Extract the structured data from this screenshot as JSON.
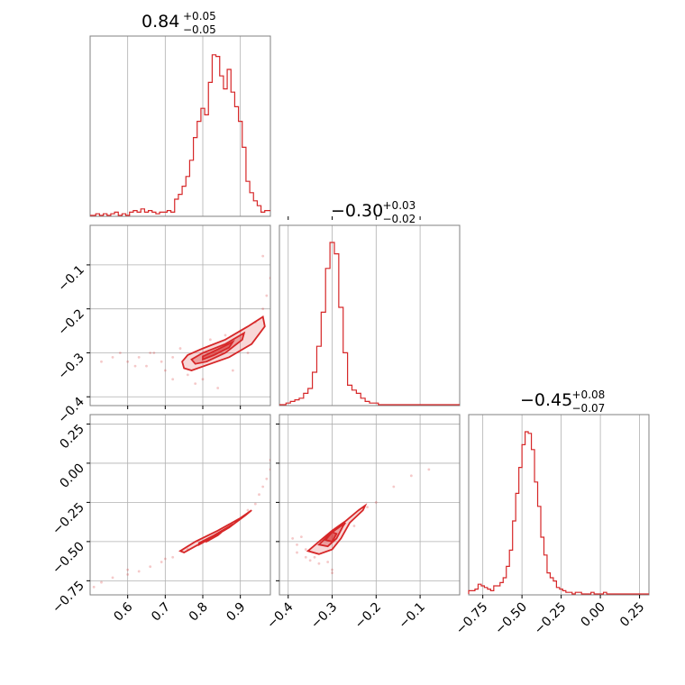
{
  "colors": {
    "series": "#d62728",
    "frame": "#808080",
    "grid": "#b0b0b0"
  },
  "chart_data": {
    "type": "corner",
    "params": [
      {
        "median": "0.84",
        "err_plus": "+0.05",
        "err_minus": "−0.05",
        "range": [
          0.5,
          0.98
        ]
      },
      {
        "median": "−0.30",
        "err_plus": "+0.03",
        "err_minus": "−0.02",
        "range": [
          -0.42,
          -0.01
        ]
      },
      {
        "median": "−0.45",
        "err_plus": "+0.08",
        "err_minus": "−0.07",
        "range": [
          -0.84,
          0.31
        ]
      }
    ],
    "ticks": [
      {
        "values": [
          0.6,
          0.7,
          0.8,
          0.9
        ],
        "labels": [
          "0.6",
          "0.7",
          "0.8",
          "0.9"
        ]
      },
      {
        "values": [
          -0.4,
          -0.3,
          -0.2,
          -0.1
        ],
        "labels": [
          "−0.4",
          "−0.3",
          "−0.2",
          "−0.1"
        ]
      },
      {
        "values": [
          -0.75,
          -0.5,
          -0.25,
          0.0,
          0.25
        ],
        "labels": [
          "−0.75",
          "−0.50",
          "−0.25",
          "0.00",
          "0.25"
        ]
      }
    ],
    "histograms": [
      {
        "param": 0,
        "x": [
          0.51,
          0.52,
          0.53,
          0.54,
          0.55,
          0.56,
          0.57,
          0.58,
          0.59,
          0.6,
          0.61,
          0.62,
          0.63,
          0.64,
          0.65,
          0.66,
          0.67,
          0.68,
          0.69,
          0.7,
          0.71,
          0.72,
          0.73,
          0.74,
          0.75,
          0.76,
          0.77,
          0.78,
          0.79,
          0.8,
          0.81,
          0.82,
          0.83,
          0.84,
          0.85,
          0.86,
          0.87,
          0.88,
          0.89,
          0.9,
          0.91,
          0.92,
          0.93,
          0.94,
          0.95,
          0.96,
          0.97
        ],
        "density": [
          0.0,
          0.01,
          0.0,
          0.01,
          0.0,
          0.01,
          0.02,
          0.0,
          0.01,
          0.0,
          0.02,
          0.03,
          0.02,
          0.04,
          0.02,
          0.03,
          0.02,
          0.01,
          0.02,
          0.02,
          0.03,
          0.02,
          0.1,
          0.13,
          0.18,
          0.24,
          0.34,
          0.48,
          0.58,
          0.66,
          0.62,
          0.82,
          0.99,
          0.98,
          0.86,
          0.78,
          0.9,
          0.76,
          0.67,
          0.58,
          0.42,
          0.21,
          0.14,
          0.09,
          0.06,
          0.02,
          0.03
        ]
      },
      {
        "param": 1,
        "x": [
          -0.41,
          -0.4,
          -0.39,
          -0.38,
          -0.37,
          -0.36,
          -0.35,
          -0.34,
          -0.33,
          -0.32,
          -0.31,
          -0.3,
          -0.29,
          -0.28,
          -0.27,
          -0.26,
          -0.25,
          -0.24,
          -0.23,
          -0.22,
          -0.21,
          -0.2,
          -0.19,
          -0.18
        ],
        "density": [
          0.0,
          0.01,
          0.02,
          0.03,
          0.04,
          0.07,
          0.1,
          0.2,
          0.36,
          0.57,
          0.84,
          1.0,
          0.93,
          0.6,
          0.32,
          0.12,
          0.09,
          0.07,
          0.04,
          0.02,
          0.01,
          0.01,
          0.0,
          0.0
        ]
      },
      {
        "param": 2,
        "x": [
          -0.83,
          -0.81,
          -0.79,
          -0.77,
          -0.75,
          -0.73,
          -0.71,
          -0.69,
          -0.67,
          -0.65,
          -0.63,
          -0.61,
          -0.59,
          -0.57,
          -0.55,
          -0.53,
          -0.51,
          -0.49,
          -0.47,
          -0.45,
          -0.43,
          -0.41,
          -0.39,
          -0.37,
          -0.35,
          -0.33,
          -0.31,
          -0.29,
          -0.27,
          -0.25,
          -0.23,
          -0.21,
          -0.19,
          -0.17,
          -0.15,
          -0.13,
          -0.11,
          -0.09,
          -0.07,
          -0.05,
          -0.03,
          -0.01,
          0.01,
          0.03,
          0.05,
          0.07
        ],
        "density": [
          0.02,
          0.02,
          0.03,
          0.06,
          0.05,
          0.04,
          0.03,
          0.02,
          0.05,
          0.05,
          0.07,
          0.1,
          0.17,
          0.27,
          0.45,
          0.62,
          0.78,
          0.92,
          1.0,
          0.99,
          0.89,
          0.69,
          0.54,
          0.35,
          0.24,
          0.13,
          0.1,
          0.08,
          0.04,
          0.03,
          0.02,
          0.01,
          0.01,
          0.0,
          0.01,
          0.01,
          0.0,
          0.0,
          0.0,
          0.01,
          0.0,
          0.0,
          0.0,
          0.01,
          0.0,
          0.0
        ]
      }
    ],
    "joint_contours": [
      {
        "x_param": 0,
        "y_param": 1,
        "levels": [
          [
            [
              0.745,
              -0.32
            ],
            [
              0.76,
              -0.305
            ],
            [
              0.8,
              -0.29
            ],
            [
              0.86,
              -0.27
            ],
            [
              0.92,
              -0.24
            ],
            [
              0.96,
              -0.218
            ],
            [
              0.965,
              -0.24
            ],
            [
              0.93,
              -0.28
            ],
            [
              0.87,
              -0.31
            ],
            [
              0.82,
              -0.325
            ],
            [
              0.77,
              -0.34
            ],
            [
              0.75,
              -0.335
            ]
          ],
          [
            [
              0.77,
              -0.315
            ],
            [
              0.8,
              -0.3
            ],
            [
              0.86,
              -0.28
            ],
            [
              0.91,
              -0.255
            ],
            [
              0.905,
              -0.27
            ],
            [
              0.86,
              -0.3
            ],
            [
              0.81,
              -0.32
            ],
            [
              0.78,
              -0.325
            ]
          ],
          [
            [
              0.8,
              -0.308
            ],
            [
              0.84,
              -0.292
            ],
            [
              0.88,
              -0.275
            ],
            [
              0.87,
              -0.288
            ],
            [
              0.83,
              -0.305
            ],
            [
              0.8,
              -0.315
            ]
          ]
        ],
        "scatter": [
          [
            0.53,
            -0.32
          ],
          [
            0.56,
            -0.31
          ],
          [
            0.6,
            -0.32
          ],
          [
            0.63,
            -0.31
          ],
          [
            0.65,
            -0.33
          ],
          [
            0.67,
            -0.3
          ],
          [
            0.69,
            -0.32
          ],
          [
            0.7,
            -0.34
          ],
          [
            0.72,
            -0.31
          ],
          [
            0.72,
            -0.36
          ],
          [
            0.74,
            -0.29
          ],
          [
            0.76,
            -0.35
          ],
          [
            0.78,
            -0.37
          ],
          [
            0.8,
            -0.36
          ],
          [
            0.82,
            -0.27
          ],
          [
            0.84,
            -0.38
          ],
          [
            0.86,
            -0.26
          ],
          [
            0.88,
            -0.34
          ],
          [
            0.9,
            -0.25
          ],
          [
            0.92,
            -0.3
          ],
          [
            0.94,
            -0.23
          ],
          [
            0.96,
            -0.2
          ],
          [
            0.97,
            -0.17
          ],
          [
            0.98,
            -0.13
          ],
          [
            0.96,
            -0.08
          ],
          [
            0.62,
            -0.33
          ],
          [
            0.58,
            -0.3
          ],
          [
            0.66,
            -0.3
          ]
        ]
      },
      {
        "x_param": 0,
        "y_param": 2,
        "levels": [
          [
            [
              0.74,
              -0.56
            ],
            [
              0.78,
              -0.5
            ],
            [
              0.84,
              -0.43
            ],
            [
              0.9,
              -0.35
            ],
            [
              0.93,
              -0.3
            ],
            [
              0.915,
              -0.33
            ],
            [
              0.87,
              -0.41
            ],
            [
              0.82,
              -0.48
            ],
            [
              0.78,
              -0.53
            ],
            [
              0.75,
              -0.57
            ]
          ],
          [
            [
              0.79,
              -0.51
            ],
            [
              0.83,
              -0.46
            ],
            [
              0.88,
              -0.39
            ],
            [
              0.87,
              -0.41
            ],
            [
              0.82,
              -0.48
            ],
            [
              0.79,
              -0.52
            ]
          ],
          [
            [
              0.81,
              -0.49
            ],
            [
              0.85,
              -0.44
            ],
            [
              0.84,
              -0.46
            ],
            [
              0.81,
              -0.5
            ]
          ]
        ],
        "scatter": [
          [
            0.51,
            -0.79
          ],
          [
            0.53,
            -0.76
          ],
          [
            0.56,
            -0.73
          ],
          [
            0.6,
            -0.71
          ],
          [
            0.63,
            -0.69
          ],
          [
            0.66,
            -0.66
          ],
          [
            0.69,
            -0.63
          ],
          [
            0.72,
            -0.6
          ],
          [
            0.76,
            -0.55
          ],
          [
            0.8,
            -0.5
          ],
          [
            0.88,
            -0.38
          ],
          [
            0.92,
            -0.3
          ],
          [
            0.94,
            -0.26
          ],
          [
            0.95,
            -0.2
          ],
          [
            0.96,
            -0.15
          ],
          [
            0.97,
            -0.1
          ],
          [
            0.98,
            -0.04
          ],
          [
            0.98,
            0.02
          ],
          [
            0.6,
            -0.68
          ],
          [
            0.7,
            -0.61
          ]
        ]
      },
      {
        "x_param": 1,
        "y_param": 2,
        "levels": [
          [
            [
              -0.355,
              -0.56
            ],
            [
              -0.33,
              -0.5
            ],
            [
              -0.3,
              -0.43
            ],
            [
              -0.27,
              -0.37
            ],
            [
              -0.24,
              -0.3
            ],
            [
              -0.225,
              -0.27
            ],
            [
              -0.23,
              -0.3
            ],
            [
              -0.26,
              -0.38
            ],
            [
              -0.28,
              -0.48
            ],
            [
              -0.3,
              -0.55
            ],
            [
              -0.33,
              -0.58
            ]
          ],
          [
            [
              -0.33,
              -0.52
            ],
            [
              -0.305,
              -0.45
            ],
            [
              -0.27,
              -0.38
            ],
            [
              -0.275,
              -0.4
            ],
            [
              -0.29,
              -0.48
            ],
            [
              -0.31,
              -0.53
            ]
          ],
          [
            [
              -0.315,
              -0.49
            ],
            [
              -0.3,
              -0.44
            ],
            [
              -0.29,
              -0.45
            ],
            [
              -0.3,
              -0.5
            ]
          ]
        ],
        "scatter": [
          [
            -0.39,
            -0.48
          ],
          [
            -0.38,
            -0.52
          ],
          [
            -0.37,
            -0.47
          ],
          [
            -0.36,
            -0.6
          ],
          [
            -0.35,
            -0.62
          ],
          [
            -0.33,
            -0.64
          ],
          [
            -0.31,
            -0.63
          ],
          [
            -0.3,
            -0.68
          ],
          [
            -0.3,
            -0.7
          ],
          [
            -0.25,
            -0.4
          ],
          [
            -0.22,
            -0.28
          ],
          [
            -0.2,
            -0.25
          ],
          [
            -0.16,
            -0.15
          ],
          [
            -0.12,
            -0.08
          ],
          [
            -0.08,
            -0.04
          ],
          [
            -0.36,
            -0.55
          ],
          [
            -0.34,
            -0.6
          ],
          [
            -0.38,
            -0.57
          ]
        ]
      }
    ]
  }
}
